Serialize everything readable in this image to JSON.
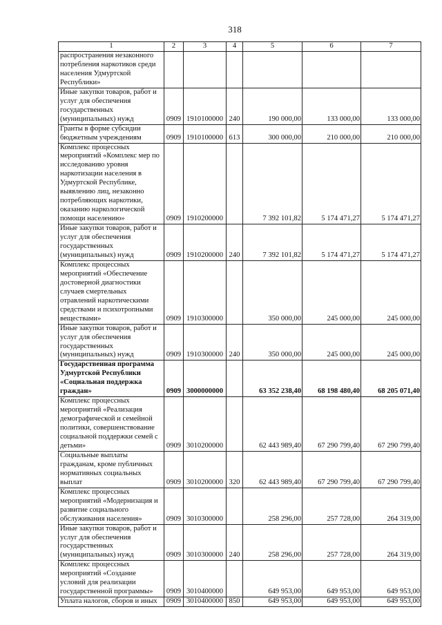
{
  "page_number": "318",
  "table": {
    "headers": [
      "1",
      "2",
      "3",
      "4",
      "5",
      "6",
      "7"
    ],
    "rows": [
      {
        "name": "распространения незаконного потребления наркотиков среди населения Удмуртской Республики»",
        "sec": "",
        "csr": "",
        "vr": "",
        "v1": "",
        "v2": "",
        "v3": ""
      },
      {
        "name": "Иные закупки товаров, работ и услуг для обеспечения государственных (муниципальных) нужд",
        "sec": "0909",
        "csr": "1910100000",
        "vr": "240",
        "v1": "190 000,00",
        "v2": "133 000,00",
        "v3": "133 000,00"
      },
      {
        "name": "Гранты в форме субсидии бюджетным учреждениям",
        "sec": "0909",
        "csr": "1910100000",
        "vr": "613",
        "v1": "300 000,00",
        "v2": "210 000,00",
        "v3": "210 000,00"
      },
      {
        "name": "Комплекс процессных мероприятий «Комплекс мер по исследованию уровня наркотизации населения в Удмуртской Республике, выявлению лиц, незаконно потребляющих наркотики, оказанию наркологической помощи населению»",
        "sec": "0909",
        "csr": "1910200000",
        "vr": "",
        "v1": "7 392 101,82",
        "v2": "5 174 471,27",
        "v3": "5 174 471,27"
      },
      {
        "name": "Иные закупки товаров, работ и услуг для обеспечения государственных (муниципальных) нужд",
        "sec": "0909",
        "csr": "1910200000",
        "vr": "240",
        "v1": "7 392 101,82",
        "v2": "5 174 471,27",
        "v3": "5 174 471,27"
      },
      {
        "name": "Комплекс процессных мероприятий «Обеспечение достоверной диагностики случаев смертельных отравлений наркотическими средствами и психотропными веществами»",
        "sec": "0909",
        "csr": "1910300000",
        "vr": "",
        "v1": "350 000,00",
        "v2": "245 000,00",
        "v3": "245 000,00"
      },
      {
        "name": "Иные закупки товаров, работ и услуг для обеспечения государственных (муниципальных) нужд",
        "sec": "0909",
        "csr": "1910300000",
        "vr": "240",
        "v1": "350 000,00",
        "v2": "245 000,00",
        "v3": "245 000,00"
      },
      {
        "name": "Государственная программа Удмуртской Республики «Социальная поддержка граждан»",
        "sec": "0909",
        "csr": "3000000000",
        "vr": "",
        "v1": "63 352 238,40",
        "v2": "68 198 480,40",
        "v3": "68 205 071,40",
        "bold": true
      },
      {
        "name": "Комплекс процессных мероприятий «Реализация демографической и семейной политики, совершенствование социальной поддержки семей с детьми»",
        "sec": "0909",
        "csr": "3010200000",
        "vr": "",
        "v1": "62 443 989,40",
        "v2": "67 290 799,40",
        "v3": "67 290 799,40"
      },
      {
        "name": "Социальные выплаты гражданам, кроме публичных нормативных социальных выплат",
        "sec": "0909",
        "csr": "3010200000",
        "vr": "320",
        "v1": "62 443 989,40",
        "v2": "67 290 799,40",
        "v3": "67 290 799,40"
      },
      {
        "name": "Комплекс процессных мероприятий «Модернизация и развитие социального обслуживания населения»",
        "sec": "0909",
        "csr": "3010300000",
        "vr": "",
        "v1": "258 296,00",
        "v2": "257 728,00",
        "v3": "264 319,00"
      },
      {
        "name": "Иные закупки товаров, работ и услуг для обеспечения государственных (муниципальных) нужд",
        "sec": "0909",
        "csr": "3010300000",
        "vr": "240",
        "v1": "258 296,00",
        "v2": "257 728,00",
        "v3": "264 319,00"
      },
      {
        "name": "Комплекс процессных мероприятий «Создание условий для реализации государственной программы»",
        "sec": "0909",
        "csr": "3010400000",
        "vr": "",
        "v1": "649 953,00",
        "v2": "649 953,00",
        "v3": "649 953,00"
      },
      {
        "name": "Уплата налогов, сборов и иных",
        "sec": "0909",
        "csr": "3010400000",
        "vr": "850",
        "v1": "649 953,00",
        "v2": "649 953,00",
        "v3": "649 953,00"
      }
    ]
  }
}
